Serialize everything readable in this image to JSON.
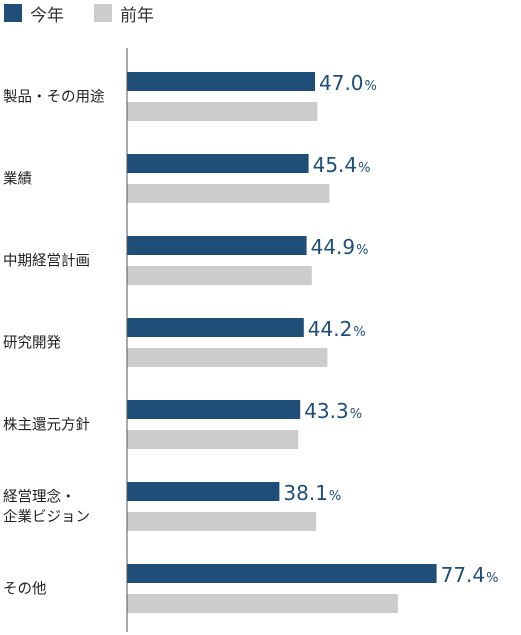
{
  "legend": {
    "current": "今年",
    "previous": "前年"
  },
  "colors": {
    "current": "#1f4e79",
    "previous": "#cccccc",
    "axis": "#555555"
  },
  "chart_data": {
    "type": "bar",
    "orientation": "horizontal",
    "categories": [
      [
        "製品・その用途"
      ],
      [
        "業績"
      ],
      [
        "中期経営計画"
      ],
      [
        "研究開発"
      ],
      [
        "株主還元方針"
      ],
      [
        "経営理念・",
        "企業ビジョン"
      ],
      [
        "その他"
      ]
    ],
    "series": [
      {
        "name": "今年",
        "values": [
          47.0,
          45.4,
          44.9,
          44.2,
          43.3,
          38.1,
          77.4
        ],
        "labels": [
          "47.0",
          "45.4",
          "44.9",
          "44.2",
          "43.3",
          "38.1",
          "77.4"
        ],
        "unit": "%"
      },
      {
        "name": "前年",
        "values": [
          47.6,
          50.6,
          46.2,
          50.1,
          42.8,
          47.3,
          67.7
        ]
      }
    ],
    "xlim": [
      0,
      100
    ],
    "legend_position": "top-left",
    "grid": false
  }
}
